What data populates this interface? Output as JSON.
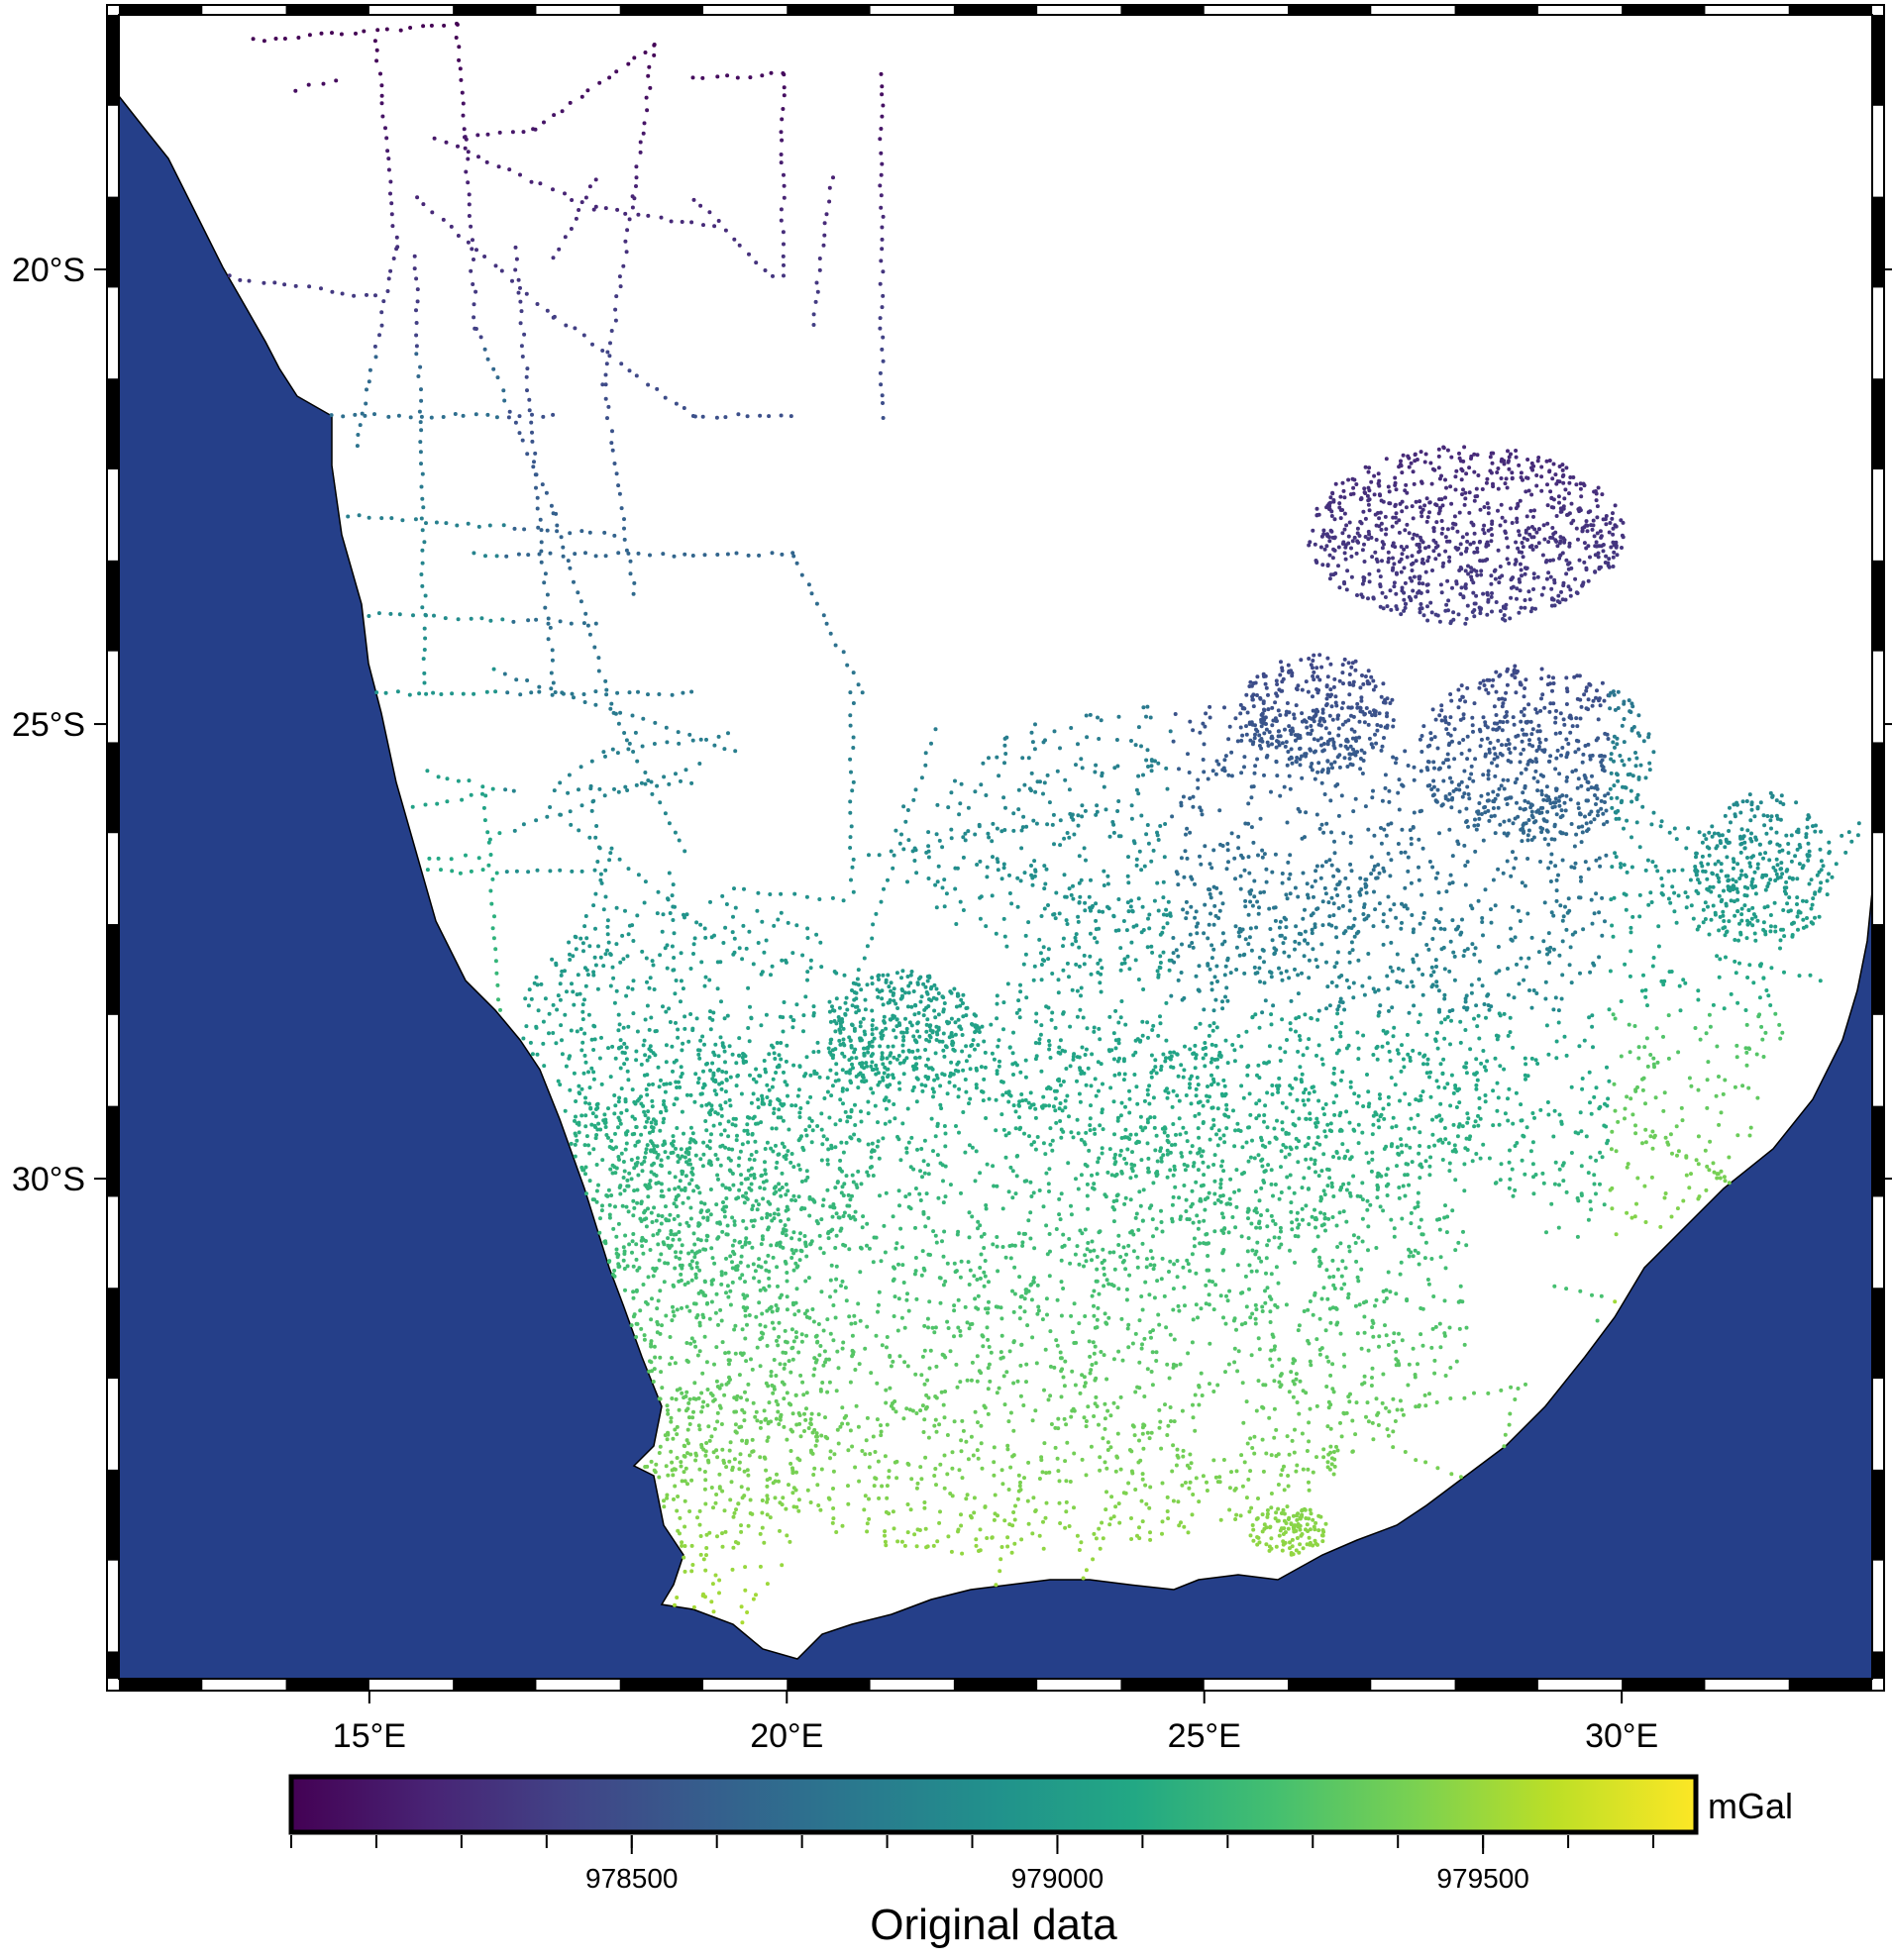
{
  "map": {
    "title": "",
    "lon_range": [
      12,
      33
    ],
    "lat_range": [
      -35.5,
      -17.2
    ],
    "x_ticks": [
      {
        "value": 15,
        "label": "15°E"
      },
      {
        "value": 20,
        "label": "20°E"
      },
      {
        "value": 25,
        "label": "25°E"
      },
      {
        "value": 30,
        "label": "30°E"
      }
    ],
    "y_ticks": [
      {
        "value": -20,
        "label": "20°S"
      },
      {
        "value": -25,
        "label": "25°S"
      },
      {
        "value": -30,
        "label": "30°S"
      }
    ],
    "frame_style": "checkered",
    "colors": {
      "ocean": "#253f89",
      "land": "#ffffff",
      "coastline": "#000000"
    },
    "points_colormap": "viridis",
    "points_description_range_mgal": [
      978100,
      979750
    ]
  },
  "colorbar": {
    "min": 978100,
    "max": 979750,
    "major_ticks": [
      {
        "value": 978500,
        "label": "978500"
      },
      {
        "value": 979000,
        "label": "979000"
      },
      {
        "value": 979500,
        "label": "979500"
      }
    ],
    "minor_step": 100,
    "unit": "mGal",
    "title": "Original data",
    "colormap": "viridis"
  }
}
